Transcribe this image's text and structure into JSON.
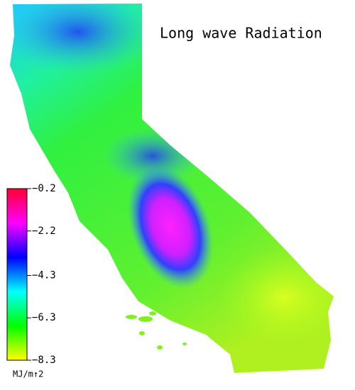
{
  "title": "Long wave Radiation",
  "colorbar": {
    "unit": "MJ/m↑2",
    "lim": [
      -8.3,
      -0.2
    ],
    "ticks": [
      {
        "value": -0.2,
        "label": "−0.2"
      },
      {
        "value": -2.2,
        "label": "−2.2"
      },
      {
        "value": -4.3,
        "label": "−4.3"
      },
      {
        "value": -6.3,
        "label": "−6.3"
      },
      {
        "value": -8.3,
        "label": "−8.3"
      }
    ],
    "colors": [
      "#ff0033",
      "#ff00ff",
      "#0000ff",
      "#00ffff",
      "#00ff00",
      "#ffff00"
    ]
  }
}
